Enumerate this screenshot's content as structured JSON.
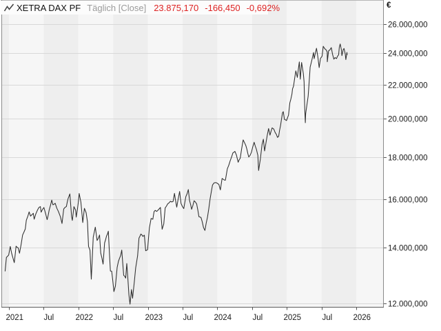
{
  "header": {
    "title": "XETRA DAX PF",
    "period": "Täglich [Close]",
    "last": "23.875,170",
    "change": "-166,450",
    "change_pct": "-0,692%"
  },
  "colors": {
    "quote_red": "#dd2222",
    "price_line": "#2d2d2d",
    "grid_line": "#d8d8d8",
    "stripe_light": "#f6f6f6",
    "stripe_dark": "#eeeeee",
    "frame": "#8a8a8a",
    "axis_bottom": "#5a5a5a",
    "tick": "#555555",
    "label_text": "#1a1a1a"
  },
  "chart_data": {
    "type": "line",
    "title": "XETRA DAX PF",
    "subtitle": "Täglich [Close]",
    "currency_label": "€",
    "y_scale": "log",
    "ylim": [
      11886,
      26770
    ],
    "grid": true,
    "legend_position": "none",
    "background_stripes": "half-year alternating",
    "y_ticks": [
      {
        "value": 26000,
        "label": "26.000,000"
      },
      {
        "value": 24000,
        "label": "24.000,000"
      },
      {
        "value": 22000,
        "label": "22.000,000"
      },
      {
        "value": 20000,
        "label": "20.000,000"
      },
      {
        "value": 18000,
        "label": "18.000,000"
      },
      {
        "value": 16000,
        "label": "16.000,000"
      },
      {
        "value": 14000,
        "label": "14.000,000"
      },
      {
        "value": 12000,
        "label": "12.000,000"
      }
    ],
    "x_ticks": [
      {
        "month": 0,
        "label": "2021"
      },
      {
        "month": 6,
        "label": "Jul"
      },
      {
        "month": 12,
        "label": "2022"
      },
      {
        "month": 18,
        "label": "Jul"
      },
      {
        "month": 24,
        "label": "2023"
      },
      {
        "month": 30,
        "label": "Jul"
      },
      {
        "month": 36,
        "label": "2024"
      },
      {
        "month": 42,
        "label": "Jul"
      },
      {
        "month": 48,
        "label": "2025"
      },
      {
        "month": 54,
        "label": "Jul"
      },
      {
        "month": 60,
        "label": "2026"
      }
    ],
    "series": [
      {
        "name": "XETRA DAX PF",
        "points": [
          [
            "2020-12-11",
            13114
          ],
          [
            "2020-12-18",
            13631
          ],
          [
            "2020-12-30",
            13719
          ],
          [
            "2021-01-08",
            14050
          ],
          [
            "2021-01-15",
            13788
          ],
          [
            "2021-01-29",
            13433
          ],
          [
            "2021-02-08",
            14060
          ],
          [
            "2021-02-19",
            13993
          ],
          [
            "2021-02-26",
            13786
          ],
          [
            "2021-03-12",
            14502
          ],
          [
            "2021-03-19",
            14621
          ],
          [
            "2021-03-26",
            14749
          ],
          [
            "2021-04-01",
            15107
          ],
          [
            "2021-04-16",
            15460
          ],
          [
            "2021-04-23",
            15280
          ],
          [
            "2021-05-07",
            15400
          ],
          [
            "2021-05-12",
            15150
          ],
          [
            "2021-05-28",
            15520
          ],
          [
            "2021-06-14",
            15693
          ],
          [
            "2021-06-18",
            15448
          ],
          [
            "2021-07-02",
            15650
          ],
          [
            "2021-07-19",
            15133
          ],
          [
            "2021-07-30",
            15544
          ],
          [
            "2021-08-13",
            15977
          ],
          [
            "2021-08-19",
            15766
          ],
          [
            "2021-08-31",
            15835
          ],
          [
            "2021-09-09",
            15623
          ],
          [
            "2021-09-17",
            15490
          ],
          [
            "2021-09-28",
            15248
          ],
          [
            "2021-10-06",
            14973
          ],
          [
            "2021-10-15",
            15587
          ],
          [
            "2021-10-29",
            15689
          ],
          [
            "2021-11-08",
            16047
          ],
          [
            "2021-11-17",
            16251
          ],
          [
            "2021-11-26",
            15257
          ],
          [
            "2021-11-30",
            15100
          ],
          [
            "2021-12-08",
            15687
          ],
          [
            "2021-12-17",
            15532
          ],
          [
            "2021-12-20",
            15239
          ],
          [
            "2021-12-31",
            15885
          ],
          [
            "2022-01-05",
            16272
          ],
          [
            "2022-01-14",
            15883
          ],
          [
            "2022-01-24",
            15011
          ],
          [
            "2022-02-02",
            15614
          ],
          [
            "2022-02-11",
            15425
          ],
          [
            "2022-02-18",
            15043
          ],
          [
            "2022-02-24",
            14052
          ],
          [
            "2022-03-01",
            13905
          ],
          [
            "2022-03-08",
            12831
          ],
          [
            "2022-03-18",
            14413
          ],
          [
            "2022-03-29",
            14820
          ],
          [
            "2022-04-08",
            14284
          ],
          [
            "2022-04-21",
            14502
          ],
          [
            "2022-04-27",
            13794
          ],
          [
            "2022-05-09",
            13380
          ],
          [
            "2022-05-17",
            14186
          ],
          [
            "2022-05-27",
            14462
          ],
          [
            "2022-06-06",
            14654
          ],
          [
            "2022-06-17",
            13126
          ],
          [
            "2022-06-24",
            13118
          ],
          [
            "2022-07-05",
            12401
          ],
          [
            "2022-07-13",
            12595
          ],
          [
            "2022-07-22",
            13254
          ],
          [
            "2022-07-29",
            13484
          ],
          [
            "2022-08-10",
            13701
          ],
          [
            "2022-08-16",
            13910
          ],
          [
            "2022-08-26",
            12971
          ],
          [
            "2022-09-06",
            12872
          ],
          [
            "2022-09-12",
            13402
          ],
          [
            "2022-09-23",
            12284
          ],
          [
            "2022-09-29",
            11975
          ],
          [
            "2022-10-06",
            12470
          ],
          [
            "2022-10-12",
            12172
          ],
          [
            "2022-10-21",
            12731
          ],
          [
            "2022-10-28",
            13243
          ],
          [
            "2022-11-08",
            13689
          ],
          [
            "2022-11-15",
            14378
          ],
          [
            "2022-11-25",
            14541
          ],
          [
            "2022-12-05",
            14448
          ],
          [
            "2022-12-13",
            14497
          ],
          [
            "2022-12-20",
            13885
          ],
          [
            "2022-12-30",
            13924
          ],
          [
            "2023-01-09",
            14793
          ],
          [
            "2023-01-18",
            15182
          ],
          [
            "2023-01-27",
            15150
          ],
          [
            "2023-02-03",
            15476
          ],
          [
            "2023-02-09",
            15524
          ],
          [
            "2023-02-17",
            15482
          ],
          [
            "2023-03-06",
            15654
          ],
          [
            "2023-03-15",
            14735
          ],
          [
            "2023-03-24",
            14957
          ],
          [
            "2023-03-31",
            15629
          ],
          [
            "2023-04-14",
            15808
          ],
          [
            "2023-04-28",
            15922
          ],
          [
            "2023-05-12",
            15914
          ],
          [
            "2023-05-19",
            16275
          ],
          [
            "2023-05-31",
            15664
          ],
          [
            "2023-06-16",
            16358
          ],
          [
            "2023-06-23",
            15830
          ],
          [
            "2023-07-07",
            15603
          ],
          [
            "2023-07-18",
            16125
          ],
          [
            "2023-07-31",
            16447
          ],
          [
            "2023-08-07",
            15951
          ],
          [
            "2023-08-18",
            15574
          ],
          [
            "2023-08-31",
            15947
          ],
          [
            "2023-09-14",
            15805
          ],
          [
            "2023-09-26",
            15255
          ],
          [
            "2023-10-06",
            15230
          ],
          [
            "2023-10-20",
            14798
          ],
          [
            "2023-10-27",
            14687
          ],
          [
            "2023-11-10",
            15234
          ],
          [
            "2023-11-24",
            16029
          ],
          [
            "2023-12-06",
            16656
          ],
          [
            "2023-12-14",
            16752
          ],
          [
            "2023-12-29",
            16752
          ],
          [
            "2024-01-09",
            16688
          ],
          [
            "2024-01-17",
            16432
          ],
          [
            "2024-01-26",
            16961
          ],
          [
            "2024-02-02",
            16918
          ],
          [
            "2024-02-13",
            16881
          ],
          [
            "2024-02-23",
            17419
          ],
          [
            "2024-03-08",
            17815
          ],
          [
            "2024-03-22",
            18205
          ],
          [
            "2024-04-02",
            18283
          ],
          [
            "2024-04-10",
            18097
          ],
          [
            "2024-04-19",
            17737
          ],
          [
            "2024-04-30",
            17932
          ],
          [
            "2024-05-15",
            18869
          ],
          [
            "2024-05-24",
            18694
          ],
          [
            "2024-06-04",
            18406
          ],
          [
            "2024-06-14",
            18002
          ],
          [
            "2024-06-28",
            18235
          ],
          [
            "2024-07-12",
            18748
          ],
          [
            "2024-07-24",
            18387
          ],
          [
            "2024-08-01",
            18083
          ],
          [
            "2024-08-05",
            17339
          ],
          [
            "2024-08-14",
            17885
          ],
          [
            "2024-08-23",
            18633
          ],
          [
            "2024-08-30",
            18907
          ],
          [
            "2024-09-06",
            18302
          ],
          [
            "2024-09-13",
            18699
          ],
          [
            "2024-09-27",
            19474
          ],
          [
            "2024-10-04",
            19121
          ],
          [
            "2024-10-15",
            19511
          ],
          [
            "2024-10-24",
            19443
          ],
          [
            "2024-11-01",
            19255
          ],
          [
            "2024-11-13",
            19003
          ],
          [
            "2024-11-19",
            19060
          ],
          [
            "2024-11-29",
            19626
          ],
          [
            "2024-12-09",
            20346
          ],
          [
            "2024-12-13",
            20406
          ],
          [
            "2024-12-19",
            19970
          ],
          [
            "2024-12-30",
            19909
          ],
          [
            "2025-01-10",
            20215
          ],
          [
            "2025-01-17",
            20903
          ],
          [
            "2025-01-28",
            21431
          ],
          [
            "2025-01-31",
            21732
          ],
          [
            "2025-02-06",
            21902
          ],
          [
            "2025-02-18",
            22845
          ],
          [
            "2025-02-26",
            22433
          ],
          [
            "2025-03-06",
            23419
          ],
          [
            "2025-03-11",
            22329
          ],
          [
            "2025-03-18",
            23381
          ],
          [
            "2025-03-27",
            22679
          ],
          [
            "2025-03-31",
            22163
          ],
          [
            "2025-04-04",
            20642
          ],
          [
            "2025-04-07",
            19790
          ],
          [
            "2025-04-09",
            20281
          ],
          [
            "2025-04-22",
            21294
          ],
          [
            "2025-04-29",
            22426
          ],
          [
            "2025-05-02",
            23087
          ],
          [
            "2025-05-13",
            23639
          ],
          [
            "2025-05-20",
            24036
          ],
          [
            "2025-05-23",
            23630
          ],
          [
            "2025-06-05",
            24323
          ],
          [
            "2025-06-12",
            23771
          ],
          [
            "2025-06-19",
            23057
          ],
          [
            "2025-06-26",
            23649
          ],
          [
            "2025-07-04",
            23787
          ],
          [
            "2025-07-10",
            24456
          ],
          [
            "2025-07-18",
            24290
          ],
          [
            "2025-07-25",
            24218
          ],
          [
            "2025-07-31",
            24065
          ],
          [
            "2025-08-01",
            23426
          ],
          [
            "2025-08-08",
            24163
          ],
          [
            "2025-08-13",
            24185
          ],
          [
            "2025-08-22",
            24363
          ],
          [
            "2025-08-29",
            23902
          ],
          [
            "2025-09-05",
            23597
          ],
          [
            "2025-09-11",
            23703
          ],
          [
            "2025-09-19",
            23639
          ],
          [
            "2025-09-30",
            23881
          ],
          [
            "2025-10-03",
            24378
          ],
          [
            "2025-10-08",
            24611
          ],
          [
            "2025-10-14",
            24236
          ],
          [
            "2025-10-17",
            23831
          ],
          [
            "2025-10-24",
            24239
          ],
          [
            "2025-10-28",
            24309
          ],
          [
            "2025-11-04",
            23949
          ],
          [
            "2025-11-07",
            23569
          ],
          [
            "2025-11-13",
            24042
          ],
          [
            "2025-11-14",
            23875.17
          ]
        ]
      }
    ]
  }
}
